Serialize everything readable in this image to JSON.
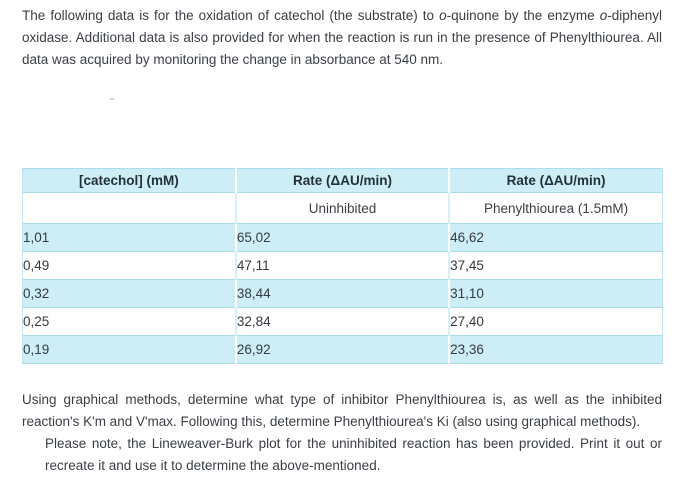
{
  "intro": {
    "seg1": "The following data is for the oxidation of catechol (the substrate) to ",
    "italic1": "o",
    "seg2": "-quinone by the enzyme ",
    "italic2": "o",
    "seg3": "-diphenyl oxidase. Additional data is also provided for when the reaction is run in the presence of Phenylthiourea. All data was acquired by monitoring the change in absorbance at 540 nm."
  },
  "table": {
    "headers": [
      "[catechol] (mM)",
      "Rate (ΔAU/min)",
      "Rate (ΔAU/min)"
    ],
    "subheaders": [
      "",
      "Uninhibited",
      "Phenylthiourea (1.5mM)"
    ],
    "rows": [
      [
        "1,01",
        "65,02",
        "46,62"
      ],
      [
        "0,49",
        "47,11",
        "37,45"
      ],
      [
        "0,32",
        "38,44",
        "31,10"
      ],
      [
        "0,25",
        "32,84",
        "27,40"
      ],
      [
        "0,19",
        "26,92",
        "23,36"
      ]
    ]
  },
  "instructions": "Using graphical methods, determine what type of inhibitor Phenylthiourea is, as well as the inhibited reaction's K'm and V'max. Following this, determine Phenylthiourea's Ki (also using graphical methods).",
  "note": "Please note, the Lineweaver-Burk plot for the uninhibited reaction has been provided. Print it out or recreate it and use it to determine the above-mentioned.",
  "colors": {
    "table_header_bg": "#cdeef7",
    "row_stripe_bg": "#cdeef7",
    "table_border": "#a9dcec",
    "body_text": "#3a3f45"
  }
}
